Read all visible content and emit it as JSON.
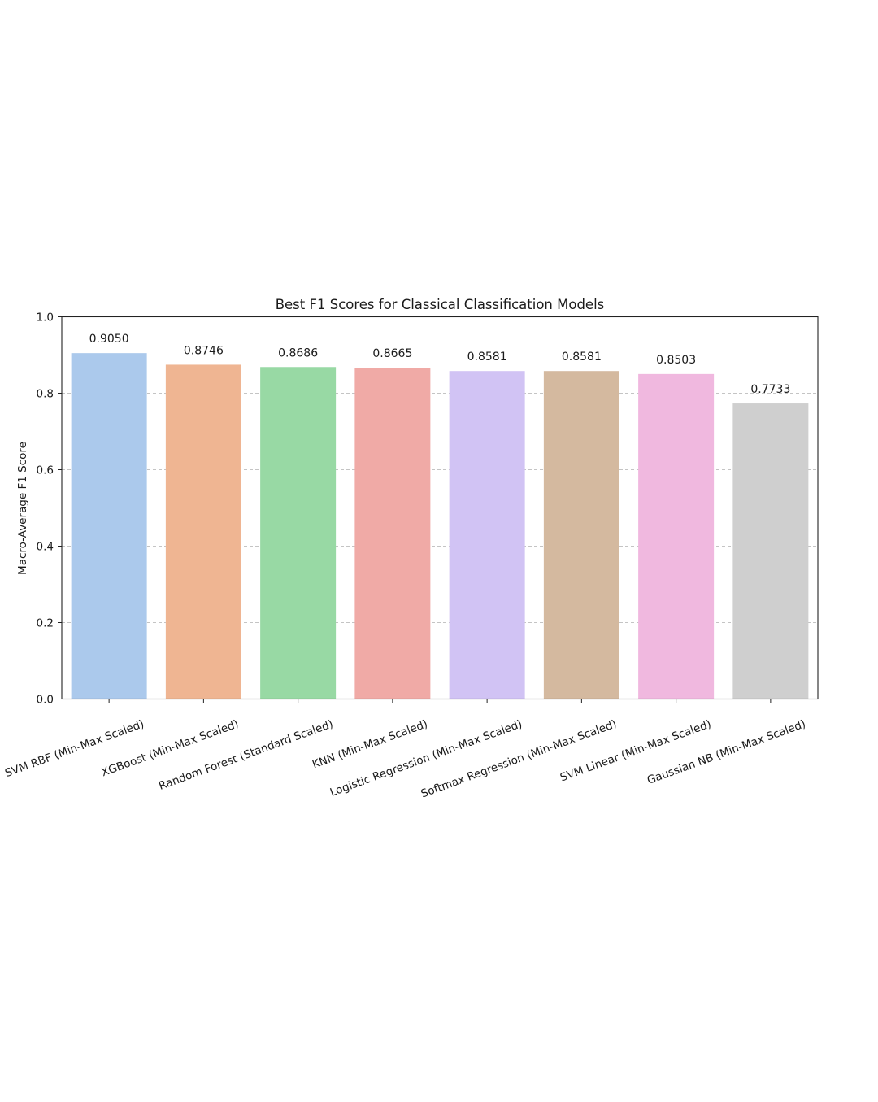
{
  "chart_data": {
    "type": "bar",
    "title": "Best F1 Scores for Classical Classification Models",
    "xlabel": "",
    "ylabel": "Macro-Average F1 Score",
    "ylim": [
      0.0,
      1.0
    ],
    "yticks": [
      "0.0",
      "0.2",
      "0.4",
      "0.6",
      "0.8",
      "1.0"
    ],
    "grid": "y-dashed",
    "categories": [
      "SVM RBF (Min-Max Scaled)",
      "XGBoost (Min-Max Scaled)",
      "Random Forest (Standard Scaled)",
      "KNN (Min-Max Scaled)",
      "Logistic Regression (Min-Max Scaled)",
      "Softmax Regression (Min-Max Scaled)",
      "SVM Linear (Min-Max Scaled)",
      "Gaussian NB (Min-Max Scaled)"
    ],
    "values": [
      0.905,
      0.8746,
      0.8686,
      0.8665,
      0.8581,
      0.8581,
      0.8503,
      0.7733
    ],
    "value_labels": [
      "0.9050",
      "0.8746",
      "0.8686",
      "0.8665",
      "0.8581",
      "0.8581",
      "0.8503",
      "0.7733"
    ],
    "colors": [
      "#abc9ec",
      "#efb592",
      "#98d9a4",
      "#f0aaa6",
      "#d1c3f4",
      "#d4b99f",
      "#f0b8df",
      "#cfcfcf"
    ]
  }
}
